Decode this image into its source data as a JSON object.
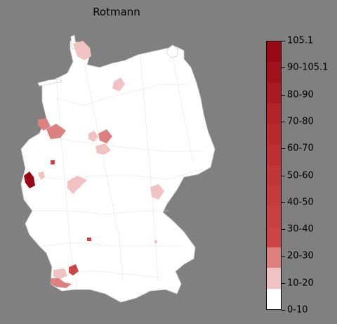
{
  "title": "Rotmann",
  "legend": {
    "colors": [
      "#ffffff",
      "#f0c2c2",
      "#dc8080",
      "#cc4444",
      "#c84040",
      "#c53a3c",
      "#c13537",
      "#bd2f33",
      "#b9292e",
      "#b32329",
      "#ab1a24",
      "#a2101d",
      "#990716"
    ],
    "labels": [
      "0-10",
      "10-20",
      "20-30",
      "30-40",
      "40-50",
      "50-60",
      "60-70",
      "70-80",
      "80-90",
      "90-105.1",
      "105.1"
    ]
  },
  "map": {
    "country": "Germany",
    "base_color": "#ffffff",
    "border_color": "#cfcfcf"
  }
}
